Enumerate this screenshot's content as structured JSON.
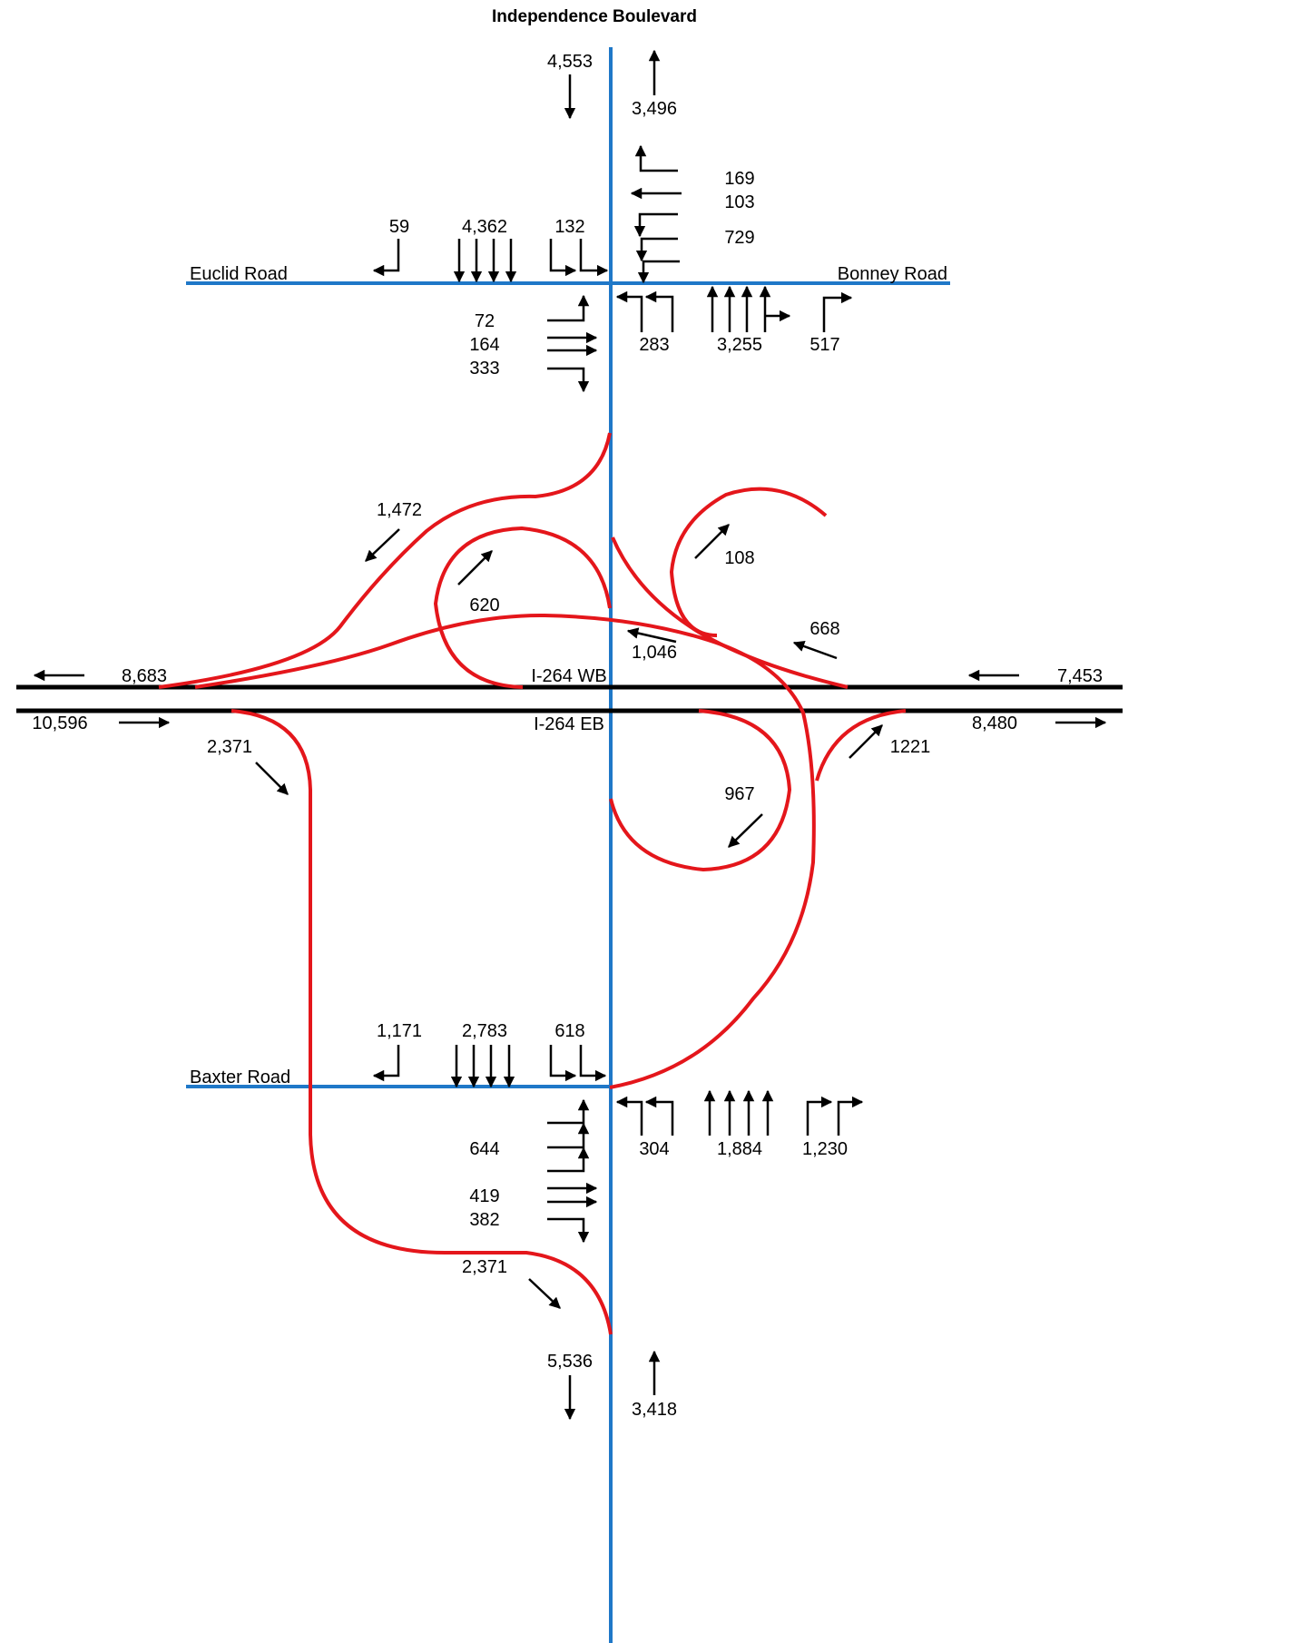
{
  "title": "Independence Boulevard",
  "roads": {
    "euclid": "Euclid Road",
    "bonney": "Bonney Road",
    "baxter": "Baxter Road",
    "i264wb": "I-264 WB",
    "i264eb": "I-264 EB"
  },
  "volumes": {
    "ind_north_sb": "4,553",
    "ind_north_nb": "3,496",
    "bonney_left": "169",
    "bonney_through": "103",
    "bonney_right": "729",
    "euclid_sb_right": "59",
    "euclid_sb_through": "4,362",
    "euclid_sb_left": "132",
    "euclid_eb_left": "72",
    "euclid_eb_through": "164",
    "euclid_eb_right": "333",
    "bonney_nb_left": "283",
    "bonney_nb_through": "3,255",
    "bonney_nb_right": "517",
    "ramp_nw": "1,472",
    "ramp_loop_nw": "620",
    "ramp_loop_ne": "108",
    "ramp_wb_on": "668",
    "ramp_wb_off": "1,046",
    "wb_west": "8,683",
    "wb_east": "7,453",
    "eb_west": "10,596",
    "eb_east": "8,480",
    "ramp_sw": "2,371",
    "ramp_loop_se": "967",
    "ramp_eb_on": "1221",
    "baxter_sb_right": "1,171",
    "baxter_sb_through": "2,783",
    "baxter_sb_left": "618",
    "baxter_eb_left": "644",
    "baxter_eb_through": "419",
    "baxter_eb_right": "382",
    "baxter_nb_left": "304",
    "baxter_nb_through": "1,884",
    "baxter_nb_right": "1,230",
    "ramp_sw_bottom": "2,371",
    "ind_south_sb": "5,536",
    "ind_south_nb": "3,418"
  }
}
